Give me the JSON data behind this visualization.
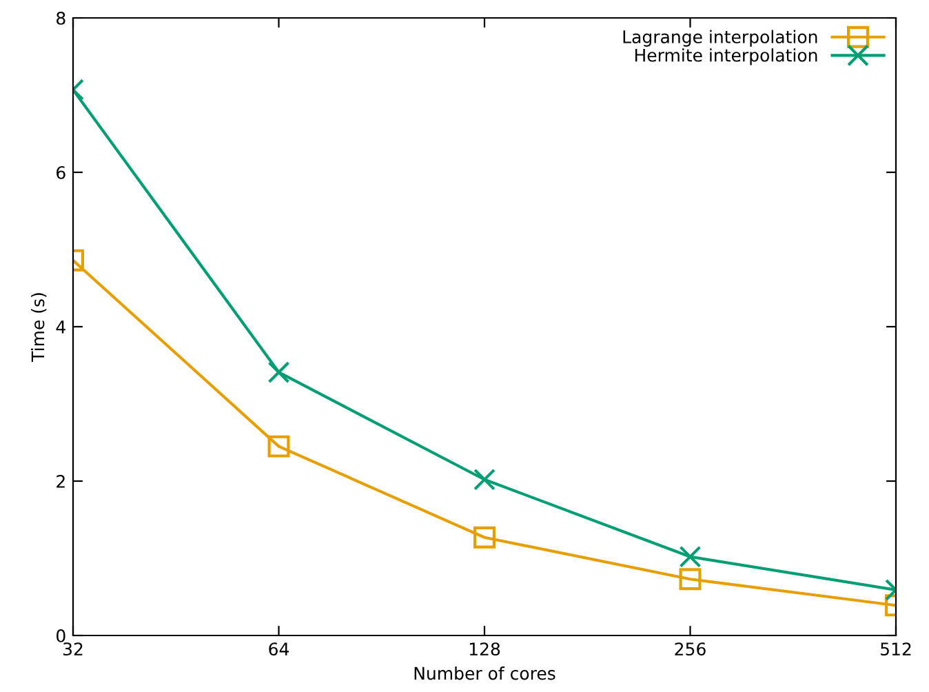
{
  "chart_data": {
    "type": "line",
    "xlabel": "Number of cores",
    "ylabel": "Time (s)",
    "log": "x",
    "xlim": [
      32,
      512
    ],
    "xticks": [
      32,
      64,
      128,
      256,
      512
    ],
    "ylim": [
      0,
      8
    ],
    "yticks": [
      0,
      2,
      4,
      6,
      8
    ],
    "x": [
      32,
      64,
      128,
      256,
      512
    ],
    "legend": "top right",
    "grid": false,
    "series": [
      {
        "name": "Lagrange interpolation",
        "color": "#e69f00",
        "marker": "square",
        "values": [
          4.86,
          2.45,
          1.27,
          0.73,
          0.39
        ]
      },
      {
        "name": "Hermite interpolation",
        "color": "#009e73",
        "marker": "cross",
        "values": [
          7.07,
          3.41,
          2.02,
          1.02,
          0.59
        ]
      }
    ]
  }
}
